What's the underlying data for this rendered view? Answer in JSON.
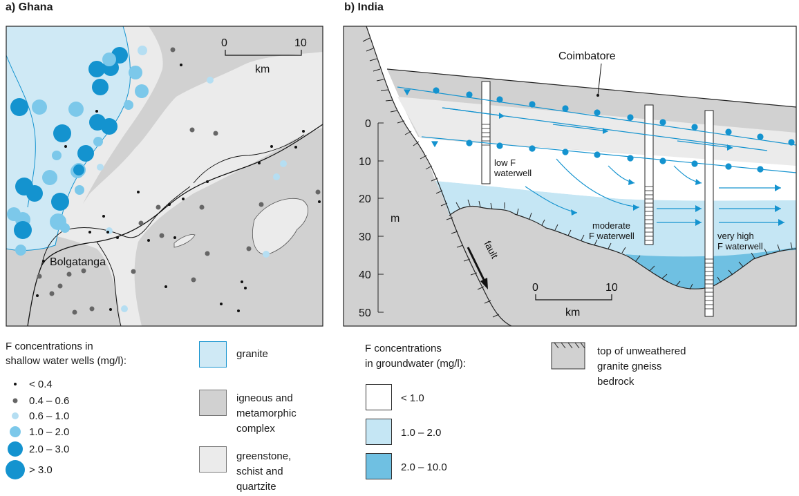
{
  "panel_a": {
    "title": "a) Ghana",
    "scale": {
      "zero": "0",
      "ten": "10",
      "unit": "km"
    },
    "place_label": "Bolgatanga",
    "legend_title_1": "F concentrations in",
    "legend_title_2": "shallow water wells (mg/l):",
    "dot_classes": [
      "< 0.4",
      "0.4 – 0.6",
      "0.6 – 1.0",
      "1.0 – 2.0",
      "2.0 – 3.0",
      "> 3.0"
    ],
    "geology": {
      "granite": [
        "granite"
      ],
      "igneous": [
        "igneous and",
        "metamorphic",
        "complex"
      ],
      "greenstone": [
        "greenstone,",
        "schist and",
        "quartzite"
      ]
    }
  },
  "panel_b": {
    "title": "b) India",
    "place_label": "Coimbatore",
    "depth_unit": "m",
    "depth_ticks": [
      "0",
      "10",
      "20",
      "30",
      "40",
      "50"
    ],
    "scale": {
      "zero": "0",
      "ten": "10",
      "unit": "km"
    },
    "fault_label": "fault",
    "well_low": [
      "low F",
      "waterwell"
    ],
    "well_moderate": [
      "moderate",
      "F waterwell"
    ],
    "well_high": [
      "very high",
      "F waterwell"
    ],
    "legend_title_1": "F concentrations",
    "legend_title_2": "in groundwater (mg/l):",
    "classes": [
      "< 1.0",
      "1.0 – 2.0",
      "2.0 – 10.0"
    ],
    "bedrock": [
      "top of unweathered",
      "granite gneiss",
      "bedrock"
    ]
  },
  "colors": {
    "granite": "#cfe9f5",
    "igneous": "#d1d1d1",
    "greenstone": "#ebebeb",
    "water_mid": "#c5e6f4",
    "water_high": "#6fc0e2",
    "blue_line": "#1493cf"
  }
}
